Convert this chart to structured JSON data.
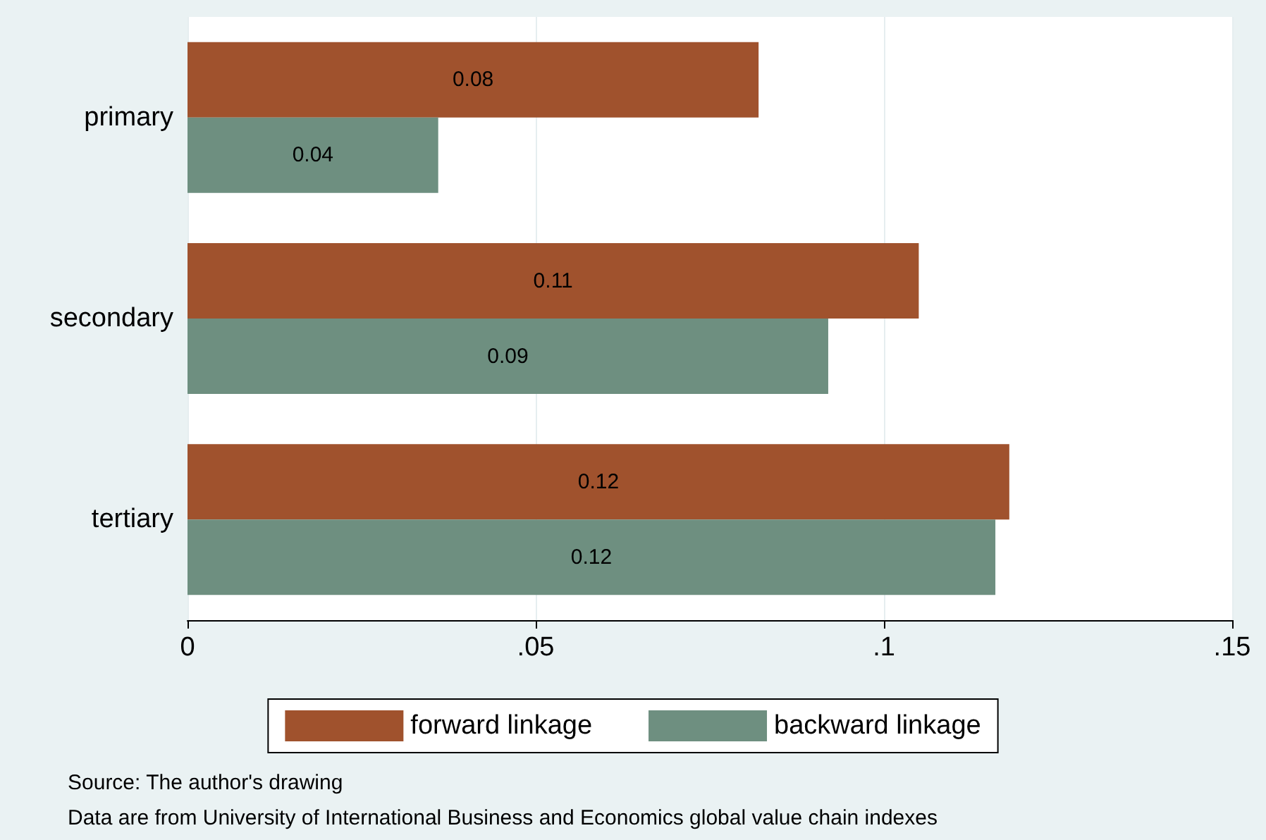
{
  "chart_data": {
    "type": "bar",
    "orientation": "horizontal",
    "categories": [
      "primary",
      "secondary",
      "tertiary"
    ],
    "series": [
      {
        "name": "forward linkage",
        "color": "#a0522d",
        "values": [
          0.082,
          0.105,
          0.118
        ],
        "value_labels": [
          "0.08",
          "0.11",
          "0.12"
        ]
      },
      {
        "name": "backward linkage",
        "color": "#6e8f80",
        "values": [
          0.036,
          0.092,
          0.116
        ],
        "value_labels": [
          "0.04",
          "0.09",
          "0.12"
        ]
      }
    ],
    "xlim": [
      0,
      0.15
    ],
    "xticks": [
      {
        "value": 0,
        "label": "0"
      },
      {
        "value": 0.05,
        "label": ".05"
      },
      {
        "value": 0.1,
        "label": ".1"
      },
      {
        "value": 0.15,
        "label": ".15"
      }
    ],
    "grid": "x",
    "legend": "bottom",
    "annotations": [
      "Source: The author's drawing",
      "Data are from University of International Business and Economics global value chain indexes"
    ]
  }
}
